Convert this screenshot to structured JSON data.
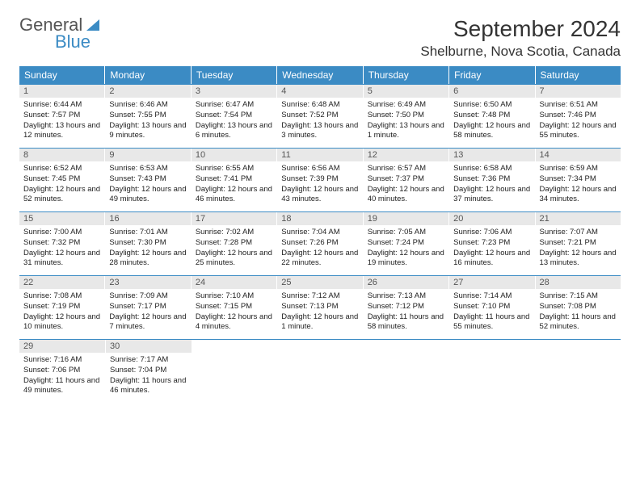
{
  "logo": {
    "general": "General",
    "blue": "Blue"
  },
  "title": "September 2024",
  "location": "Shelburne, Nova Scotia, Canada",
  "colors": {
    "header_bg": "#3b8bc4",
    "header_text": "#ffffff",
    "daynum_bg": "#e8e8e8",
    "daynum_text": "#555555",
    "border": "#3b8bc4",
    "body_text": "#222222"
  },
  "layout": {
    "columns": 7,
    "rows": 5,
    "first_day_column": 0
  },
  "weekdays": [
    "Sunday",
    "Monday",
    "Tuesday",
    "Wednesday",
    "Thursday",
    "Friday",
    "Saturday"
  ],
  "days": [
    {
      "n": 1,
      "sr": "6:44 AM",
      "ss": "7:57 PM",
      "dl": "13 hours and 12 minutes."
    },
    {
      "n": 2,
      "sr": "6:46 AM",
      "ss": "7:55 PM",
      "dl": "13 hours and 9 minutes."
    },
    {
      "n": 3,
      "sr": "6:47 AM",
      "ss": "7:54 PM",
      "dl": "13 hours and 6 minutes."
    },
    {
      "n": 4,
      "sr": "6:48 AM",
      "ss": "7:52 PM",
      "dl": "13 hours and 3 minutes."
    },
    {
      "n": 5,
      "sr": "6:49 AM",
      "ss": "7:50 PM",
      "dl": "13 hours and 1 minute."
    },
    {
      "n": 6,
      "sr": "6:50 AM",
      "ss": "7:48 PM",
      "dl": "12 hours and 58 minutes."
    },
    {
      "n": 7,
      "sr": "6:51 AM",
      "ss": "7:46 PM",
      "dl": "12 hours and 55 minutes."
    },
    {
      "n": 8,
      "sr": "6:52 AM",
      "ss": "7:45 PM",
      "dl": "12 hours and 52 minutes."
    },
    {
      "n": 9,
      "sr": "6:53 AM",
      "ss": "7:43 PM",
      "dl": "12 hours and 49 minutes."
    },
    {
      "n": 10,
      "sr": "6:55 AM",
      "ss": "7:41 PM",
      "dl": "12 hours and 46 minutes."
    },
    {
      "n": 11,
      "sr": "6:56 AM",
      "ss": "7:39 PM",
      "dl": "12 hours and 43 minutes."
    },
    {
      "n": 12,
      "sr": "6:57 AM",
      "ss": "7:37 PM",
      "dl": "12 hours and 40 minutes."
    },
    {
      "n": 13,
      "sr": "6:58 AM",
      "ss": "7:36 PM",
      "dl": "12 hours and 37 minutes."
    },
    {
      "n": 14,
      "sr": "6:59 AM",
      "ss": "7:34 PM",
      "dl": "12 hours and 34 minutes."
    },
    {
      "n": 15,
      "sr": "7:00 AM",
      "ss": "7:32 PM",
      "dl": "12 hours and 31 minutes."
    },
    {
      "n": 16,
      "sr": "7:01 AM",
      "ss": "7:30 PM",
      "dl": "12 hours and 28 minutes."
    },
    {
      "n": 17,
      "sr": "7:02 AM",
      "ss": "7:28 PM",
      "dl": "12 hours and 25 minutes."
    },
    {
      "n": 18,
      "sr": "7:04 AM",
      "ss": "7:26 PM",
      "dl": "12 hours and 22 minutes."
    },
    {
      "n": 19,
      "sr": "7:05 AM",
      "ss": "7:24 PM",
      "dl": "12 hours and 19 minutes."
    },
    {
      "n": 20,
      "sr": "7:06 AM",
      "ss": "7:23 PM",
      "dl": "12 hours and 16 minutes."
    },
    {
      "n": 21,
      "sr": "7:07 AM",
      "ss": "7:21 PM",
      "dl": "12 hours and 13 minutes."
    },
    {
      "n": 22,
      "sr": "7:08 AM",
      "ss": "7:19 PM",
      "dl": "12 hours and 10 minutes."
    },
    {
      "n": 23,
      "sr": "7:09 AM",
      "ss": "7:17 PM",
      "dl": "12 hours and 7 minutes."
    },
    {
      "n": 24,
      "sr": "7:10 AM",
      "ss": "7:15 PM",
      "dl": "12 hours and 4 minutes."
    },
    {
      "n": 25,
      "sr": "7:12 AM",
      "ss": "7:13 PM",
      "dl": "12 hours and 1 minute."
    },
    {
      "n": 26,
      "sr": "7:13 AM",
      "ss": "7:12 PM",
      "dl": "11 hours and 58 minutes."
    },
    {
      "n": 27,
      "sr": "7:14 AM",
      "ss": "7:10 PM",
      "dl": "11 hours and 55 minutes."
    },
    {
      "n": 28,
      "sr": "7:15 AM",
      "ss": "7:08 PM",
      "dl": "11 hours and 52 minutes."
    },
    {
      "n": 29,
      "sr": "7:16 AM",
      "ss": "7:06 PM",
      "dl": "11 hours and 49 minutes."
    },
    {
      "n": 30,
      "sr": "7:17 AM",
      "ss": "7:04 PM",
      "dl": "11 hours and 46 minutes."
    }
  ],
  "labels": {
    "sunrise_prefix": "Sunrise: ",
    "sunset_prefix": "Sunset: ",
    "daylight_prefix": "Daylight: "
  }
}
